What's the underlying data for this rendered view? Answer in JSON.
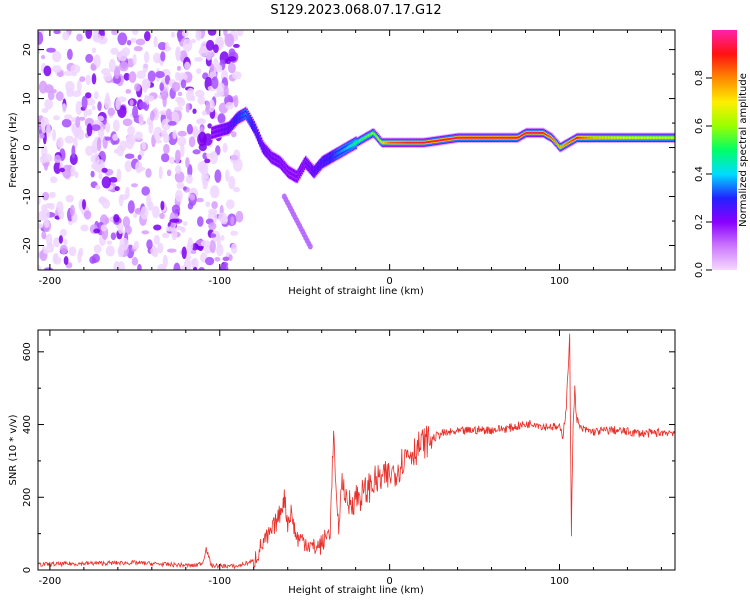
{
  "title": "S129.2023.068.07.17.G12",
  "chart_data": [
    {
      "type": "heatmap",
      "xlabel": "Height of straight line (km)",
      "ylabel": "Frequency (Hz)",
      "xlim": [
        -207,
        168
      ],
      "ylim": [
        -25,
        24
      ],
      "xticks": [
        -200,
        -100,
        0,
        100
      ],
      "yticks": [
        -20,
        -10,
        0,
        10,
        20
      ],
      "colorbar": {
        "label": "Normalized spectral amplitude",
        "range": [
          0,
          1
        ],
        "ticks": [
          "0.0",
          "0.2",
          "0.4",
          "0.6",
          "0.8"
        ],
        "colormap": [
          "#f5d8ff",
          "#cc77ff",
          "#8800ff",
          "#2222ff",
          "#00ddff",
          "#00ff66",
          "#99ff00",
          "#ffee00",
          "#ff8800",
          "#ff1111",
          "#ff22aa"
        ]
      },
      "ridge": {
        "x": [
          -105,
          -95,
          -90,
          -85,
          -80,
          -75,
          -70,
          -65,
          -60,
          -55,
          -50,
          -45,
          -40,
          -35,
          -30,
          -25,
          -20,
          -15,
          -10,
          -5,
          0,
          10,
          20,
          40,
          60,
          75,
          80,
          85,
          90,
          95,
          100,
          105,
          110,
          120,
          140,
          168
        ],
        "y": [
          3,
          4,
          6,
          7,
          4,
          0,
          -2,
          -3,
          -5,
          -6,
          -3,
          -5,
          -3,
          -2,
          -1,
          0,
          1,
          2,
          3,
          1,
          1,
          1,
          1,
          2,
          2,
          2,
          3,
          3,
          3,
          2,
          0,
          1,
          2,
          2,
          2,
          2
        ],
        "amplitude": [
          0.2,
          0.25,
          0.3,
          0.35,
          0.28,
          0.25,
          0.22,
          0.22,
          0.2,
          0.2,
          0.22,
          0.25,
          0.28,
          0.3,
          0.35,
          0.4,
          0.5,
          0.55,
          0.6,
          0.7,
          0.85,
          0.9,
          0.9,
          0.92,
          0.92,
          0.9,
          0.92,
          0.93,
          0.9,
          0.85,
          0.75,
          0.85,
          0.9,
          0.75,
          0.7,
          0.68
        ]
      }
    },
    {
      "type": "line",
      "xlabel": "Height of straight line (km)",
      "ylabel": "SNR (10 * v/v)",
      "xlim": [
        -207,
        168
      ],
      "ylim": [
        0,
        660
      ],
      "xticks": [
        -200,
        -100,
        0,
        100
      ],
      "yticks": [
        0,
        200,
        400,
        600
      ],
      "color": "#e8302a",
      "series": [
        {
          "x": [
            -207,
            -180,
            -150,
            -130,
            -115,
            -110,
            -108,
            -105,
            -90,
            -80,
            -75,
            -70,
            -65,
            -62,
            -60,
            -58,
            -55,
            -50,
            -45,
            -40,
            -35,
            -33,
            -31,
            -30,
            -28,
            -25,
            -20,
            -15,
            -10,
            -5,
            0,
            5,
            10,
            15,
            20,
            25,
            30,
            40,
            50,
            60,
            70,
            80,
            85,
            90,
            95,
            100,
            102,
            104,
            105,
            106,
            107,
            108,
            109,
            110,
            112,
            115,
            120,
            130,
            140,
            150,
            160,
            168
          ],
          "y": [
            15,
            18,
            20,
            15,
            12,
            20,
            60,
            12,
            10,
            25,
            70,
            100,
            150,
            200,
            130,
            160,
            90,
            80,
            60,
            70,
            110,
            380,
            150,
            120,
            250,
            180,
            200,
            210,
            240,
            250,
            260,
            280,
            320,
            330,
            350,
            360,
            375,
            380,
            385,
            385,
            390,
            400,
            405,
            395,
            395,
            390,
            370,
            450,
            550,
            640,
            100,
            400,
            500,
            420,
            390,
            385,
            380,
            385,
            380,
            375,
            378,
            380
          ]
        }
      ]
    }
  ]
}
